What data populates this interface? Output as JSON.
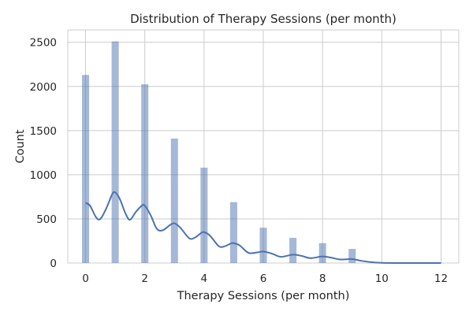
{
  "chart_data": {
    "type": "bar",
    "title": "Distribution of Therapy Sessions (per month)",
    "xlabel": "Therapy Sessions (per month)",
    "ylabel": "Count",
    "x_ticks": [
      0,
      2,
      4,
      6,
      8,
      10,
      12
    ],
    "y_ticks": [
      0,
      500,
      1000,
      1500,
      2000,
      2500
    ],
    "xlim": [
      -0.6,
      12.6
    ],
    "ylim": [
      0,
      2640
    ],
    "grid": true,
    "bar_color": "#4c72b0",
    "bar_opacity": 0.5,
    "kde_color": "#4c72b0",
    "bins": [
      {
        "x": 0,
        "count": 2130
      },
      {
        "x": 1,
        "count": 2510
      },
      {
        "x": 2,
        "count": 2025
      },
      {
        "x": 3,
        "count": 1410
      },
      {
        "x": 4,
        "count": 1080
      },
      {
        "x": 5,
        "count": 690
      },
      {
        "x": 6,
        "count": 400
      },
      {
        "x": 7,
        "count": 285
      },
      {
        "x": 8,
        "count": 225
      },
      {
        "x": 9,
        "count": 160
      }
    ],
    "bin_width": 0.24,
    "kde_curve": [
      [
        0,
        680
      ],
      [
        0.15,
        650
      ],
      [
        0.35,
        520
      ],
      [
        0.5,
        500
      ],
      [
        0.7,
        620
      ],
      [
        0.9,
        780
      ],
      [
        1,
        800
      ],
      [
        1.15,
        730
      ],
      [
        1.35,
        560
      ],
      [
        1.5,
        490
      ],
      [
        1.7,
        580
      ],
      [
        1.9,
        650
      ],
      [
        2,
        650
      ],
      [
        2.2,
        540
      ],
      [
        2.4,
        390
      ],
      [
        2.6,
        370
      ],
      [
        2.85,
        430
      ],
      [
        3,
        450
      ],
      [
        3.2,
        400
      ],
      [
        3.5,
        280
      ],
      [
        3.7,
        290
      ],
      [
        3.9,
        340
      ],
      [
        4,
        350
      ],
      [
        4.2,
        310
      ],
      [
        4.5,
        190
      ],
      [
        4.7,
        190
      ],
      [
        4.9,
        220
      ],
      [
        5,
        225
      ],
      [
        5.2,
        200
      ],
      [
        5.5,
        115
      ],
      [
        5.8,
        120
      ],
      [
        6,
        130
      ],
      [
        6.3,
        105
      ],
      [
        6.6,
        70
      ],
      [
        7,
        95
      ],
      [
        7.3,
        80
      ],
      [
        7.6,
        55
      ],
      [
        8,
        75
      ],
      [
        8.3,
        60
      ],
      [
        8.6,
        40
      ],
      [
        9,
        45
      ],
      [
        9.3,
        25
      ],
      [
        9.7,
        8
      ],
      [
        10,
        2
      ],
      [
        10.5,
        0
      ],
      [
        11,
        0
      ],
      [
        12,
        0
      ]
    ]
  }
}
